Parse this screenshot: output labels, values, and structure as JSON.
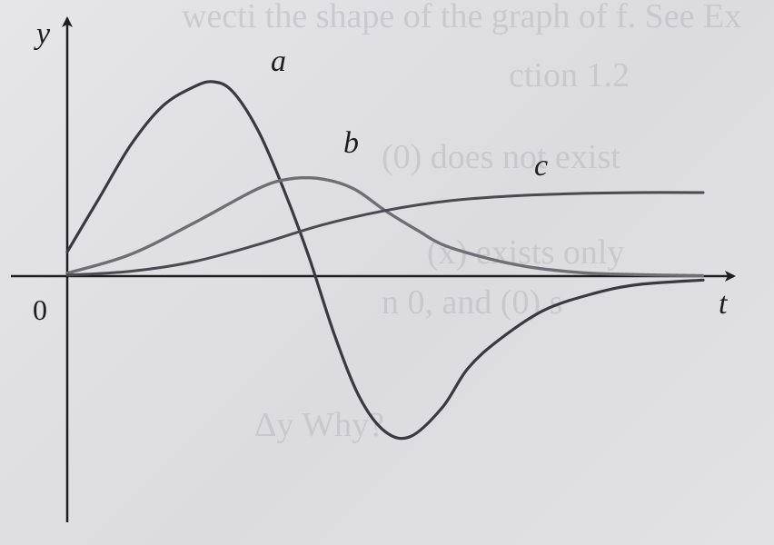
{
  "chart_data": {
    "type": "line",
    "xlabel": "t",
    "ylabel": "y",
    "origin_label": "0",
    "xlim": [
      0,
      10
    ],
    "ylim": [
      -3.5,
      4.3
    ],
    "grid": false,
    "legend": "inline labels near curves",
    "series": [
      {
        "name": "a",
        "color": "#3a3a3e",
        "x": [
          0,
          0.5,
          1,
          1.5,
          2,
          2.3,
          2.6,
          3,
          3.4,
          3.8,
          4.2,
          4.6,
          5.0,
          5.4,
          5.9,
          6.3,
          6.8,
          7.5,
          8.3,
          9.0,
          10
        ],
        "y": [
          0.5,
          1.6,
          2.7,
          3.5,
          3.9,
          4.0,
          3.8,
          3.0,
          1.8,
          0.4,
          -1.2,
          -2.5,
          -3.2,
          -3.3,
          -2.7,
          -1.9,
          -1.3,
          -0.7,
          -0.35,
          -0.17,
          -0.08
        ]
      },
      {
        "name": "b",
        "color": "#6e6e74",
        "x": [
          0,
          1,
          2,
          3,
          3.5,
          4,
          4.5,
          5,
          5.5,
          6,
          7,
          8,
          9,
          10
        ],
        "y": [
          0.06,
          0.45,
          1.1,
          1.8,
          2.0,
          2.0,
          1.8,
          1.35,
          0.95,
          0.6,
          0.25,
          0.08,
          0.03,
          0.01
        ]
      },
      {
        "name": "c",
        "color": "#4a4a50",
        "x": [
          0,
          1,
          2,
          3,
          4,
          5,
          6,
          7,
          8,
          9,
          10
        ],
        "y": [
          0.02,
          0.1,
          0.3,
          0.65,
          1.05,
          1.35,
          1.55,
          1.65,
          1.7,
          1.72,
          1.72
        ]
      }
    ]
  }
}
